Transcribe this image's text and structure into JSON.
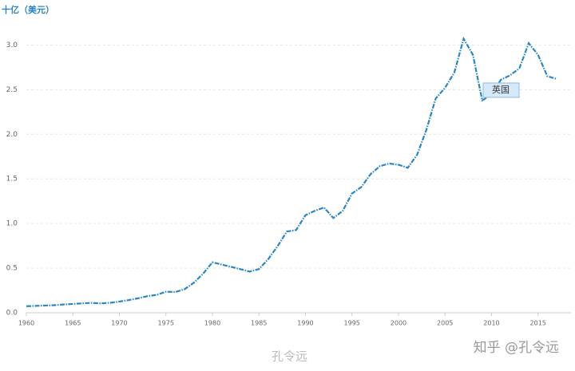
{
  "chart_data": {
    "type": "line",
    "unit_label": "十亿（美元）",
    "x": [
      1960,
      1961,
      1962,
      1963,
      1964,
      1965,
      1966,
      1967,
      1968,
      1969,
      1970,
      1971,
      1972,
      1973,
      1974,
      1975,
      1976,
      1977,
      1978,
      1979,
      1980,
      1981,
      1982,
      1983,
      1984,
      1985,
      1986,
      1987,
      1988,
      1989,
      1990,
      1991,
      1992,
      1993,
      1994,
      1995,
      1996,
      1997,
      1998,
      1999,
      2000,
      2001,
      2002,
      2003,
      2004,
      2005,
      2006,
      2007,
      2008,
      2009,
      2010,
      2011,
      2012,
      2013,
      2014,
      2015,
      2016,
      2017
    ],
    "series": [
      {
        "name": "英国",
        "color": "#2e86c1",
        "values": [
          0.073,
          0.077,
          0.081,
          0.085,
          0.093,
          0.099,
          0.105,
          0.111,
          0.104,
          0.112,
          0.125,
          0.142,
          0.162,
          0.186,
          0.2,
          0.236,
          0.232,
          0.263,
          0.336,
          0.438,
          0.565,
          0.54,
          0.515,
          0.489,
          0.461,
          0.489,
          0.601,
          0.745,
          0.91,
          0.927,
          1.093,
          1.142,
          1.179,
          1.061,
          1.14,
          1.335,
          1.408,
          1.553,
          1.642,
          1.672,
          1.658,
          1.624,
          1.77,
          2.05,
          2.4,
          2.52,
          2.69,
          3.07,
          2.89,
          2.38,
          2.44,
          2.61,
          2.66,
          2.74,
          3.02,
          2.89,
          2.65,
          2.62
        ]
      }
    ],
    "xlim": [
      1960,
      2017
    ],
    "xticks": [
      1960,
      1965,
      1970,
      1975,
      1980,
      1985,
      1990,
      1995,
      2000,
      2005,
      2010,
      2015
    ],
    "ylim": [
      0,
      3.2
    ],
    "yticks": [
      {
        "value": 0,
        "label": "0.0"
      },
      0.5,
      {
        "value": 1,
        "label": "1.0"
      },
      1.5,
      {
        "value": 2,
        "label": "2.0"
      },
      2.5,
      {
        "value": 3,
        "label": "3.0"
      }
    ],
    "grid": true
  },
  "watermarks": {
    "zhihu": "知乎 @孔令远",
    "weibo": "孔令远"
  }
}
